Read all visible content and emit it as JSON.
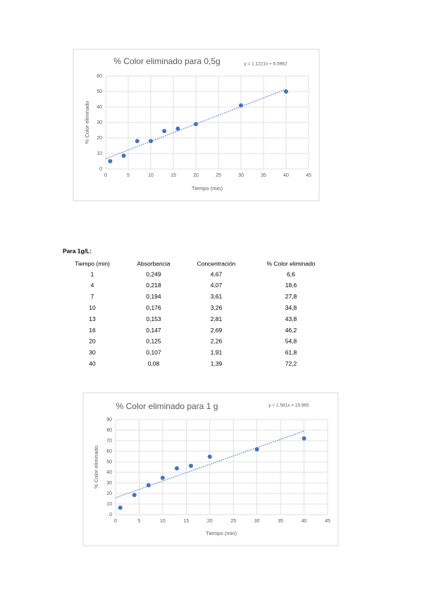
{
  "chart_data": [
    {
      "type": "scatter",
      "title": "% Color eliminado para 0,5g",
      "x_label": "Tiempo (min)",
      "y_label": "% Color eliminado",
      "x": [
        1,
        4,
        7,
        10,
        13,
        16,
        20,
        30,
        40
      ],
      "series": [
        {
          "name": "% Color eliminado",
          "color": "#4472c4",
          "values": [
            5,
            8.5,
            18,
            18,
            24.5,
            26,
            29,
            41,
            50
          ]
        }
      ],
      "trendline": {
        "slope": 1.1221,
        "intercept": 6.5982,
        "label": "y = 1.1221x + 6.5982"
      },
      "xlim": [
        0,
        45
      ],
      "xticks": [
        0,
        5,
        10,
        15,
        20,
        25,
        30,
        35,
        40,
        45
      ],
      "ylim": [
        0,
        60
      ],
      "yticks": [
        0,
        10,
        20,
        30,
        40,
        50,
        60
      ],
      "grid": true
    },
    {
      "type": "scatter",
      "title": "% Color eliminado para 1 g",
      "x_label": "Tiempo (min)",
      "y_label": "% Color eliminado",
      "x": [
        1,
        4,
        7,
        10,
        13,
        16,
        20,
        30,
        40
      ],
      "series": [
        {
          "name": "% Color eliminado",
          "color": "#4472c4",
          "values": [
            6.6,
            18.6,
            27.8,
            34.8,
            43.8,
            46.2,
            54.8,
            61.8,
            72.2
          ]
        }
      ],
      "trendline": {
        "slope": 1.581,
        "intercept": 15.965,
        "label": "y = 1.581x + 15.965"
      },
      "xlim": [
        0,
        45
      ],
      "xticks": [
        0,
        5,
        10,
        15,
        20,
        25,
        30,
        35,
        40,
        45
      ],
      "ylim": [
        0,
        90
      ],
      "yticks": [
        0,
        10,
        20,
        30,
        40,
        50,
        60,
        70,
        80,
        90
      ],
      "grid": true
    }
  ],
  "table": {
    "caption": "Para 1g/L:",
    "columns": [
      "Tiempo (min)",
      "Absorbancia",
      "Concentración",
      "% Color eliminado"
    ],
    "rows": [
      [
        "1",
        "0,249",
        "4,67",
        "6,6"
      ],
      [
        "4",
        "0,218",
        "4,07",
        "18,6"
      ],
      [
        "7",
        "0,194",
        "3,61",
        "27,8"
      ],
      [
        "10",
        "0,176",
        "3,26",
        "34,8"
      ],
      [
        "13",
        "0,153",
        "2,81",
        "43,8"
      ],
      [
        "16",
        "0,147",
        "2,69",
        "46,2"
      ],
      [
        "20",
        "0,125",
        "2,26",
        "54,8"
      ],
      [
        "30",
        "0,107",
        "1,91",
        "61,8"
      ],
      [
        "40",
        "0,08",
        "1,39",
        "72,2"
      ]
    ]
  }
}
